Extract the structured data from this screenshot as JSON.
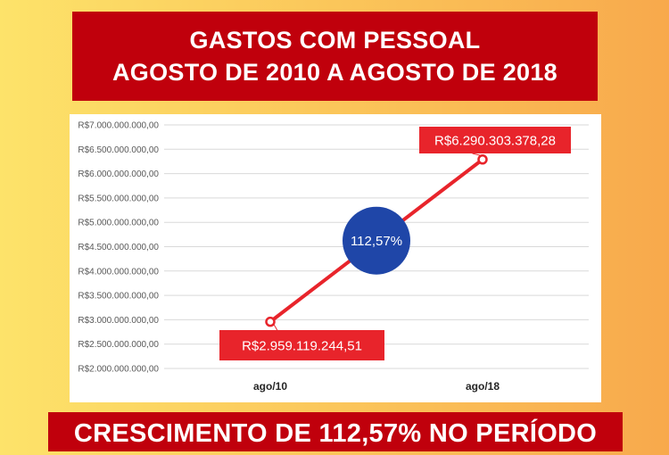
{
  "header": {
    "title_line1": "GASTOS COM PESSOAL",
    "title_line2": "AGOSTO DE 2010 A AGOSTO DE 2018"
  },
  "footer": {
    "text": "CRESCIMENTO DE 112,57% NO PERÍODO"
  },
  "colors": {
    "banner": "#c0000c",
    "line": "#e8242b",
    "bubble": "#1f46a8",
    "grid": "#d9d9d9"
  },
  "chart_data": {
    "type": "line",
    "categories": [
      "ago/10",
      "ago/18"
    ],
    "series": [
      {
        "values": [
          2959119244.51,
          6290303378.28
        ]
      }
    ],
    "data_labels": [
      "R$2.959.119.244,51",
      "R$6.290.303.378,28"
    ],
    "ylim": [
      2000000000,
      7000000000
    ],
    "ytick_values": [
      2000000000,
      2500000000,
      3000000000,
      3500000000,
      4000000000,
      4500000000,
      5000000000,
      5500000000,
      6000000000,
      6500000000,
      7000000000
    ],
    "ytick_labels": [
      "R$2.000.000.000,00",
      "R$2.500.000.000,00",
      "R$3.000.000.000,00",
      "R$3.500.000.000,00",
      "R$4.000.000.000,00",
      "R$4.500.000.000,00",
      "R$5.000.000.000,00",
      "R$5.500.000.000,00",
      "R$6.000.000.000,00",
      "R$6.500.000.000,00",
      "R$7.000.000.000,00"
    ],
    "annotation": "112,57%",
    "grid": true,
    "legend": "none"
  }
}
